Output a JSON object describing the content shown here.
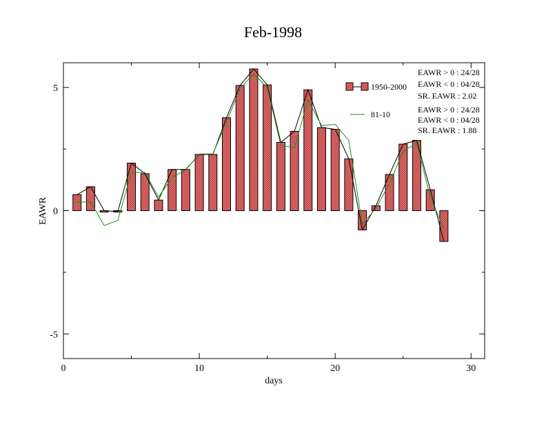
{
  "colors": {
    "bar_fill": "#e46a6a",
    "bar_stroke": "#000000",
    "line_1950_2000": "#000000",
    "line_81_10": "#1a8f1a",
    "axis": "#000000",
    "background": "#ffffff"
  },
  "chart_data": {
    "type": "bar",
    "title": "Feb-1998",
    "xlabel": "days",
    "ylabel": "EAWR",
    "xlim": [
      0,
      31
    ],
    "ylim": [
      -6,
      6
    ],
    "x_ticks": [
      0,
      10,
      20,
      30
    ],
    "x_tick_labels": [
      "0",
      "10",
      "20",
      "30"
    ],
    "y_ticks": [
      -5,
      0,
      5
    ],
    "y_tick_labels": [
      "-5",
      "0",
      "5"
    ],
    "grid": false,
    "legend_position": "top-right",
    "x": [
      1,
      2,
      3,
      4,
      5,
      6,
      7,
      8,
      9,
      10,
      11,
      12,
      13,
      14,
      15,
      16,
      17,
      18,
      19,
      20,
      21,
      22,
      23,
      24,
      25,
      26,
      27,
      28
    ],
    "series": [
      {
        "name": "1950-2000",
        "kind": "bar+line",
        "values": [
          0.65,
          0.97,
          0.0,
          -0.04,
          1.93,
          1.5,
          0.43,
          1.67,
          1.67,
          2.28,
          2.28,
          3.77,
          5.08,
          5.75,
          5.1,
          2.77,
          3.22,
          4.9,
          3.37,
          3.3,
          2.1,
          -0.78,
          0.2,
          1.47,
          2.7,
          2.85,
          0.85,
          -1.25
        ]
      },
      {
        "name": "81-10",
        "kind": "line",
        "values": [
          0.35,
          0.35,
          -0.6,
          -0.4,
          1.55,
          1.55,
          0.55,
          1.35,
          1.65,
          2.3,
          2.3,
          3.6,
          4.95,
          5.55,
          5.0,
          2.65,
          2.55,
          4.5,
          3.45,
          3.5,
          2.85,
          -0.55,
          0.1,
          1.1,
          2.4,
          2.75,
          0.55,
          -0.75
        ]
      }
    ],
    "annotations": [
      {
        "series": "1950-2000",
        "lines": [
          "EAWR > 0 : 24/28",
          "EAWR < 0 : 04/28",
          "SR. EAWR :  2.02"
        ]
      },
      {
        "series": "81-10",
        "lines": [
          "EAWR > 0 : 24/28",
          "EAWR < 0 : 04/28",
          "SR. EAWR :  1.88"
        ]
      }
    ]
  }
}
